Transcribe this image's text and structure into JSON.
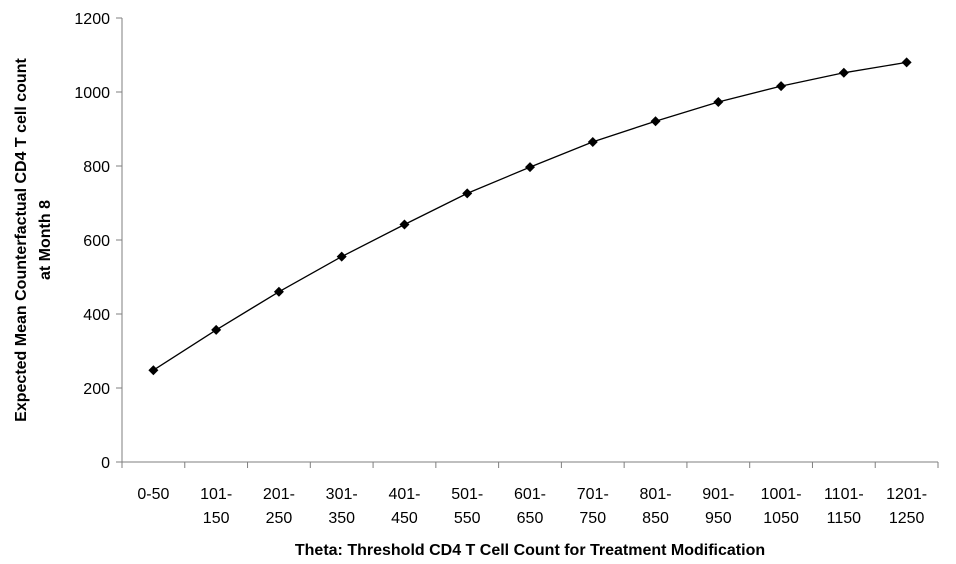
{
  "chart_data": {
    "type": "line",
    "title": "",
    "xlabel": "Theta: Threshold CD4 T Cell Count for Treatment Modification",
    "ylabel_lines": [
      "Expected Mean Counterfactual CD4 T cell count",
      "at Month 8"
    ],
    "categories": [
      [
        "0-50"
      ],
      [
        "101-",
        "150"
      ],
      [
        "201-",
        "250"
      ],
      [
        "301-",
        "350"
      ],
      [
        "401-",
        "450"
      ],
      [
        "501-",
        "550"
      ],
      [
        "601-",
        "650"
      ],
      [
        "701-",
        "750"
      ],
      [
        "801-",
        "850"
      ],
      [
        "901-",
        "950"
      ],
      [
        "1001-",
        "1050"
      ],
      [
        "1101-",
        "1150"
      ],
      [
        "1201-",
        "1250"
      ]
    ],
    "series": [
      {
        "values": [
          248,
          357,
          460,
          555,
          642,
          726,
          797,
          865,
          921,
          973,
          1016,
          1052,
          1080
        ]
      }
    ],
    "ylim": [
      0,
      1200
    ],
    "yticks": [
      0,
      200,
      400,
      600,
      800,
      1000,
      1200
    ],
    "grid": false,
    "legend": "none",
    "colors": {
      "line": "#000000",
      "marker": "#000000",
      "axis": "#7f7f7f"
    }
  }
}
